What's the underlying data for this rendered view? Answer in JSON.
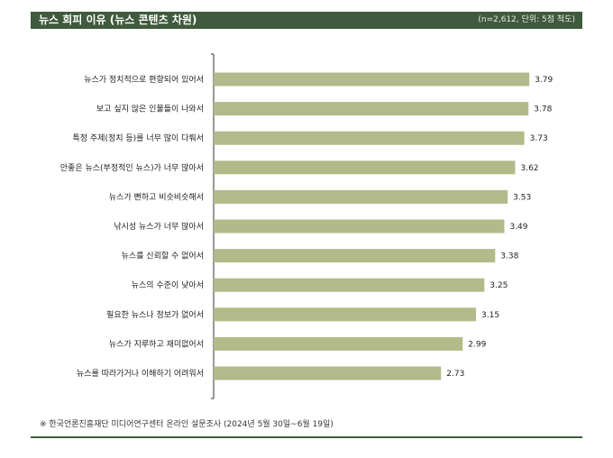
{
  "header": {
    "title": "뉴스 회피 이유 (뉴스 콘텐츠 차원)",
    "note": "(n=2,612, 단위: 5점 척도)"
  },
  "footer": {
    "source": "※ 한국언론진흥재단 미디어연구센터 온라인 설문조사 (2024년 5월 30일~6월 19일)"
  },
  "colors": {
    "header": "#3f5a3c",
    "bar": "#b3ba8a",
    "axis": "#555555"
  },
  "chart_data": {
    "type": "bar",
    "orientation": "horizontal",
    "categories": [
      "뉴스가 정치적으로 편향되어 있어서",
      "보고 싶지 않은 인물들이 나와서",
      "특정 주제(정치 등)를 너무 많이 다뤄서",
      "안좋은 뉴스(부정적인 뉴스)가 너무 많아서",
      "뉴스가 뻔하고 비슷비슷해서",
      "낚시성 뉴스가 너무 많아서",
      "뉴스를 신뢰할 수 없어서",
      "뉴스의 수준이 낮아서",
      "필요한 뉴스나 정보가 없어서",
      "뉴스가 지루하고 재미없어서",
      "뉴스를 따라가거나 이해하기 어려워서"
    ],
    "values": [
      3.79,
      3.78,
      3.73,
      3.62,
      3.53,
      3.49,
      3.38,
      3.25,
      3.15,
      2.99,
      2.73
    ],
    "value_labels": [
      "3.79",
      "3.78",
      "3.73",
      "3.62",
      "3.53",
      "3.49",
      "3.38",
      "3.25",
      "3.15",
      "2.99",
      "2.73"
    ],
    "title": "뉴스 회피 이유 (뉴스 콘텐츠 차원)",
    "xlim": [
      0,
      4.5
    ],
    "grid": false,
    "legend": "none"
  }
}
